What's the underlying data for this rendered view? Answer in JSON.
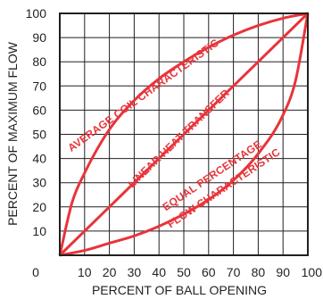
{
  "chart_data": {
    "type": "line",
    "xlabel": "PERCENT OF BALL OPENING",
    "ylabel": "PERCENT OF MAXIMUM FLOW",
    "xlim": [
      0,
      100
    ],
    "ylim": [
      0,
      100
    ],
    "grid": true,
    "x_ticks": [
      "0",
      "10",
      "20",
      "30",
      "40",
      "50",
      "60",
      "70",
      "80",
      "90",
      "100"
    ],
    "y_ticks": [
      "100",
      "90",
      "80",
      "70",
      "60",
      "50",
      "40",
      "30",
      "20",
      "10"
    ],
    "series_color": "#e8343a",
    "series": [
      {
        "name": "AVERAGE COIL CHARACTERISTIC",
        "x": [
          0,
          5,
          10,
          20,
          30,
          40,
          50,
          60,
          70,
          80,
          90,
          100
        ],
        "y": [
          0,
          22,
          34,
          52,
          64,
          73,
          80,
          86,
          91,
          95,
          98,
          100
        ]
      },
      {
        "name": "LINEAR HEAT TRANSFER",
        "x": [
          0,
          100
        ],
        "y": [
          0,
          100
        ]
      },
      {
        "name": "EQUAL PERCENTAGE FLOW CHARACTERISTIC",
        "x": [
          0,
          10,
          20,
          30,
          40,
          50,
          60,
          70,
          80,
          90,
          95,
          100
        ],
        "y": [
          0,
          2,
          5,
          8,
          12,
          17,
          23,
          31,
          42,
          58,
          72,
          100
        ]
      }
    ],
    "annotations": {
      "average_coil": "AVERAGE COIL CHARACTERISTIC",
      "linear": "LINEAR HEAT TRANSFER",
      "equal_line1": "EQUAL PERCENTAGE",
      "equal_line2": "FLOW CHARACTERISTIC"
    }
  }
}
